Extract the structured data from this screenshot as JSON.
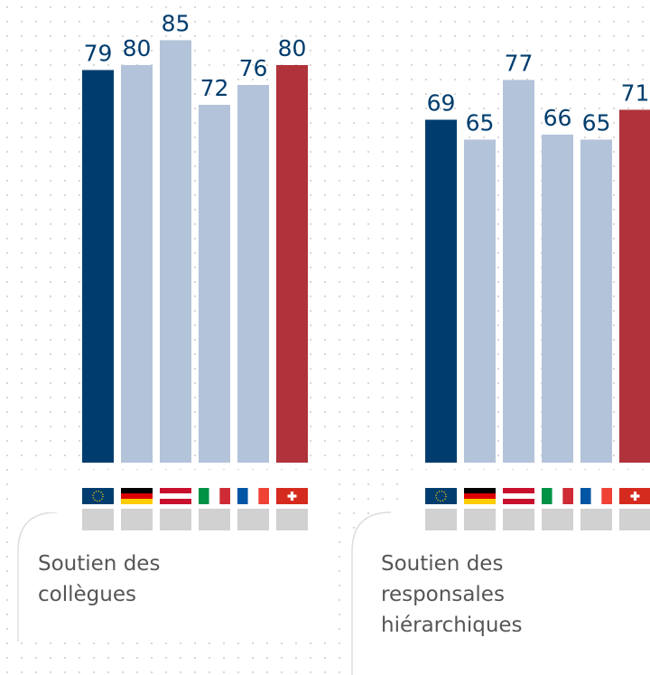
{
  "chart_data": [
    {
      "type": "bar",
      "title": "Soutien des collègues",
      "categories": [
        null,
        null,
        null,
        null,
        null,
        null
      ],
      "values": [
        79,
        80,
        85,
        72,
        76,
        80
      ],
      "colors": [
        "#003d6e",
        "#b3c3da",
        "#b3c3da",
        "#b3c3da",
        "#b3c3da",
        "#b0323b"
      ],
      "ylim": [
        0,
        100
      ]
    },
    {
      "type": "bar",
      "title": "Soutien des responsales hiérarchiques",
      "categories": [
        null,
        null,
        null,
        null,
        null,
        null
      ],
      "values": [
        69,
        65,
        77,
        66,
        65,
        71
      ],
      "colors": [
        "#003d6e",
        "#b3c3da",
        "#b3c3da",
        "#b3c3da",
        "#b3c3da",
        "#b0323b"
      ],
      "ylim": [
        0,
        100
      ]
    }
  ]
}
